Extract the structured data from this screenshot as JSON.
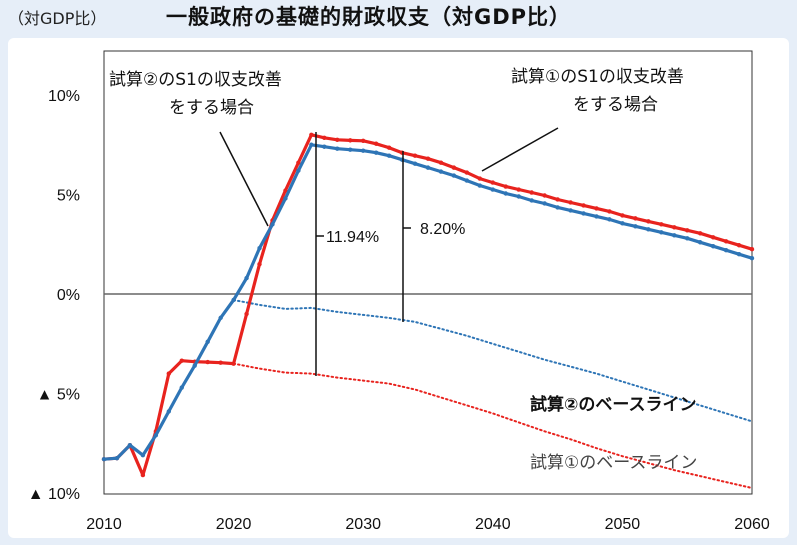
{
  "header": {
    "unit": "（対GDP比）",
    "title": "一般政府の基礎的財政収支（対GDP比）"
  },
  "chart_data": {
    "type": "line",
    "title": "一般政府の基礎的財政収支（対GDP比）",
    "ylabel": "（対GDP比）",
    "xlim": [
      2010,
      2060
    ],
    "ylim": [
      -10,
      12
    ],
    "x_ticks": [
      "2010",
      "2020",
      "2030",
      "2040",
      "2050",
      "2060"
    ],
    "y_ticks": [
      {
        "value": 10,
        "label": "10%"
      },
      {
        "value": 5,
        "label": "5%"
      },
      {
        "value": 0,
        "label": "0%"
      },
      {
        "value": -5,
        "label": "▲ 5%"
      },
      {
        "value": -10,
        "label": "▲ 10%"
      }
    ],
    "grid": false,
    "series": [
      {
        "label": "試算①のS1の収支改善をする場合",
        "color": "#e8231e",
        "style": "solid",
        "points": [
          [
            2010,
            -8.3
          ],
          [
            2011,
            -8.25
          ],
          [
            2012,
            -7.6
          ],
          [
            2013,
            -9.1
          ],
          [
            2014,
            -6.9
          ],
          [
            2015,
            -4.0
          ],
          [
            2016,
            -3.35
          ],
          [
            2017,
            -3.4
          ],
          [
            2018,
            -3.42
          ],
          [
            2019,
            -3.45
          ],
          [
            2020,
            -3.5
          ],
          [
            2021,
            -1.0
          ],
          [
            2022,
            1.5
          ],
          [
            2023,
            3.7
          ],
          [
            2024,
            5.2
          ],
          [
            2025,
            6.6
          ],
          [
            2026,
            8.0
          ],
          [
            2027,
            7.85
          ],
          [
            2028,
            7.75
          ],
          [
            2029,
            7.72
          ],
          [
            2030,
            7.7
          ],
          [
            2031,
            7.55
          ],
          [
            2032,
            7.35
          ],
          [
            2033,
            7.1
          ],
          [
            2034,
            6.95
          ],
          [
            2035,
            6.8
          ],
          [
            2036,
            6.6
          ],
          [
            2037,
            6.35
          ],
          [
            2038,
            6.1
          ],
          [
            2039,
            5.8
          ],
          [
            2040,
            5.6
          ],
          [
            2041,
            5.4
          ],
          [
            2042,
            5.25
          ],
          [
            2043,
            5.1
          ],
          [
            2044,
            4.95
          ],
          [
            2045,
            4.75
          ],
          [
            2046,
            4.6
          ],
          [
            2047,
            4.45
          ],
          [
            2048,
            4.3
          ],
          [
            2049,
            4.15
          ],
          [
            2050,
            3.95
          ],
          [
            2051,
            3.8
          ],
          [
            2052,
            3.65
          ],
          [
            2053,
            3.5
          ],
          [
            2054,
            3.35
          ],
          [
            2055,
            3.2
          ],
          [
            2056,
            3.05
          ],
          [
            2057,
            2.85
          ],
          [
            2058,
            2.65
          ],
          [
            2059,
            2.45
          ],
          [
            2060,
            2.25
          ]
        ]
      },
      {
        "label": "試算②のS1の収支改善をする場合",
        "color": "#2e75b6",
        "style": "solid",
        "points": [
          [
            2010,
            -8.3
          ],
          [
            2011,
            -8.25
          ],
          [
            2012,
            -7.6
          ],
          [
            2013,
            -8.1
          ],
          [
            2014,
            -7.1
          ],
          [
            2015,
            -5.9
          ],
          [
            2016,
            -4.7
          ],
          [
            2017,
            -3.6
          ],
          [
            2018,
            -2.4
          ],
          [
            2019,
            -1.2
          ],
          [
            2020,
            -0.3
          ],
          [
            2021,
            0.8
          ],
          [
            2022,
            2.3
          ],
          [
            2023,
            3.5
          ],
          [
            2024,
            4.8
          ],
          [
            2025,
            6.2
          ],
          [
            2026,
            7.5
          ],
          [
            2027,
            7.4
          ],
          [
            2028,
            7.3
          ],
          [
            2029,
            7.25
          ],
          [
            2030,
            7.2
          ],
          [
            2031,
            7.1
          ],
          [
            2032,
            6.95
          ],
          [
            2033,
            6.75
          ],
          [
            2034,
            6.55
          ],
          [
            2035,
            6.35
          ],
          [
            2036,
            6.15
          ],
          [
            2037,
            5.95
          ],
          [
            2038,
            5.7
          ],
          [
            2039,
            5.45
          ],
          [
            2040,
            5.25
          ],
          [
            2041,
            5.05
          ],
          [
            2042,
            4.9
          ],
          [
            2043,
            4.7
          ],
          [
            2044,
            4.55
          ],
          [
            2045,
            4.35
          ],
          [
            2046,
            4.2
          ],
          [
            2047,
            4.05
          ],
          [
            2048,
            3.9
          ],
          [
            2049,
            3.75
          ],
          [
            2050,
            3.55
          ],
          [
            2051,
            3.4
          ],
          [
            2052,
            3.25
          ],
          [
            2053,
            3.1
          ],
          [
            2054,
            2.95
          ],
          [
            2055,
            2.8
          ],
          [
            2056,
            2.6
          ],
          [
            2057,
            2.4
          ],
          [
            2058,
            2.2
          ],
          [
            2059,
            2.0
          ],
          [
            2060,
            1.8
          ]
        ]
      },
      {
        "label": "試算②のベースライン",
        "color": "#2e75b6",
        "style": "dotted",
        "points": [
          [
            2020,
            -0.3
          ],
          [
            2022,
            -0.55
          ],
          [
            2024,
            -0.75
          ],
          [
            2026,
            -0.7
          ],
          [
            2028,
            -0.9
          ],
          [
            2030,
            -1.05
          ],
          [
            2032,
            -1.2
          ],
          [
            2034,
            -1.4
          ],
          [
            2036,
            -1.75
          ],
          [
            2038,
            -2.1
          ],
          [
            2040,
            -2.5
          ],
          [
            2042,
            -2.9
          ],
          [
            2044,
            -3.3
          ],
          [
            2046,
            -3.65
          ],
          [
            2048,
            -4.0
          ],
          [
            2050,
            -4.4
          ],
          [
            2052,
            -4.8
          ],
          [
            2054,
            -5.2
          ],
          [
            2056,
            -5.6
          ],
          [
            2058,
            -6.0
          ],
          [
            2060,
            -6.4
          ]
        ]
      },
      {
        "label": "試算①のベースライン",
        "color": "#e8231e",
        "style": "dotted",
        "points": [
          [
            2020,
            -3.5
          ],
          [
            2022,
            -3.75
          ],
          [
            2024,
            -3.95
          ],
          [
            2026,
            -4.0
          ],
          [
            2028,
            -4.2
          ],
          [
            2030,
            -4.35
          ],
          [
            2032,
            -4.5
          ],
          [
            2034,
            -4.8
          ],
          [
            2036,
            -5.2
          ],
          [
            2038,
            -5.6
          ],
          [
            2040,
            -6.0
          ],
          [
            2042,
            -6.45
          ],
          [
            2044,
            -6.9
          ],
          [
            2046,
            -7.3
          ],
          [
            2048,
            -7.75
          ],
          [
            2050,
            -8.15
          ],
          [
            2052,
            -8.5
          ],
          [
            2054,
            -8.85
          ],
          [
            2056,
            -9.15
          ],
          [
            2058,
            -9.45
          ],
          [
            2060,
            -9.75
          ]
        ]
      }
    ],
    "annotations": {
      "label_s2_line1": "試算②のS1の収支改善",
      "label_s2_line2": "をする場合",
      "label_s1_line1": "試算①のS1の収支改善",
      "label_s1_line2": "をする場合",
      "label_base2": "試算②のベースライン",
      "label_base1": "試算①のベースライン",
      "gap1": "11.94%",
      "gap2": "8.20%"
    }
  }
}
